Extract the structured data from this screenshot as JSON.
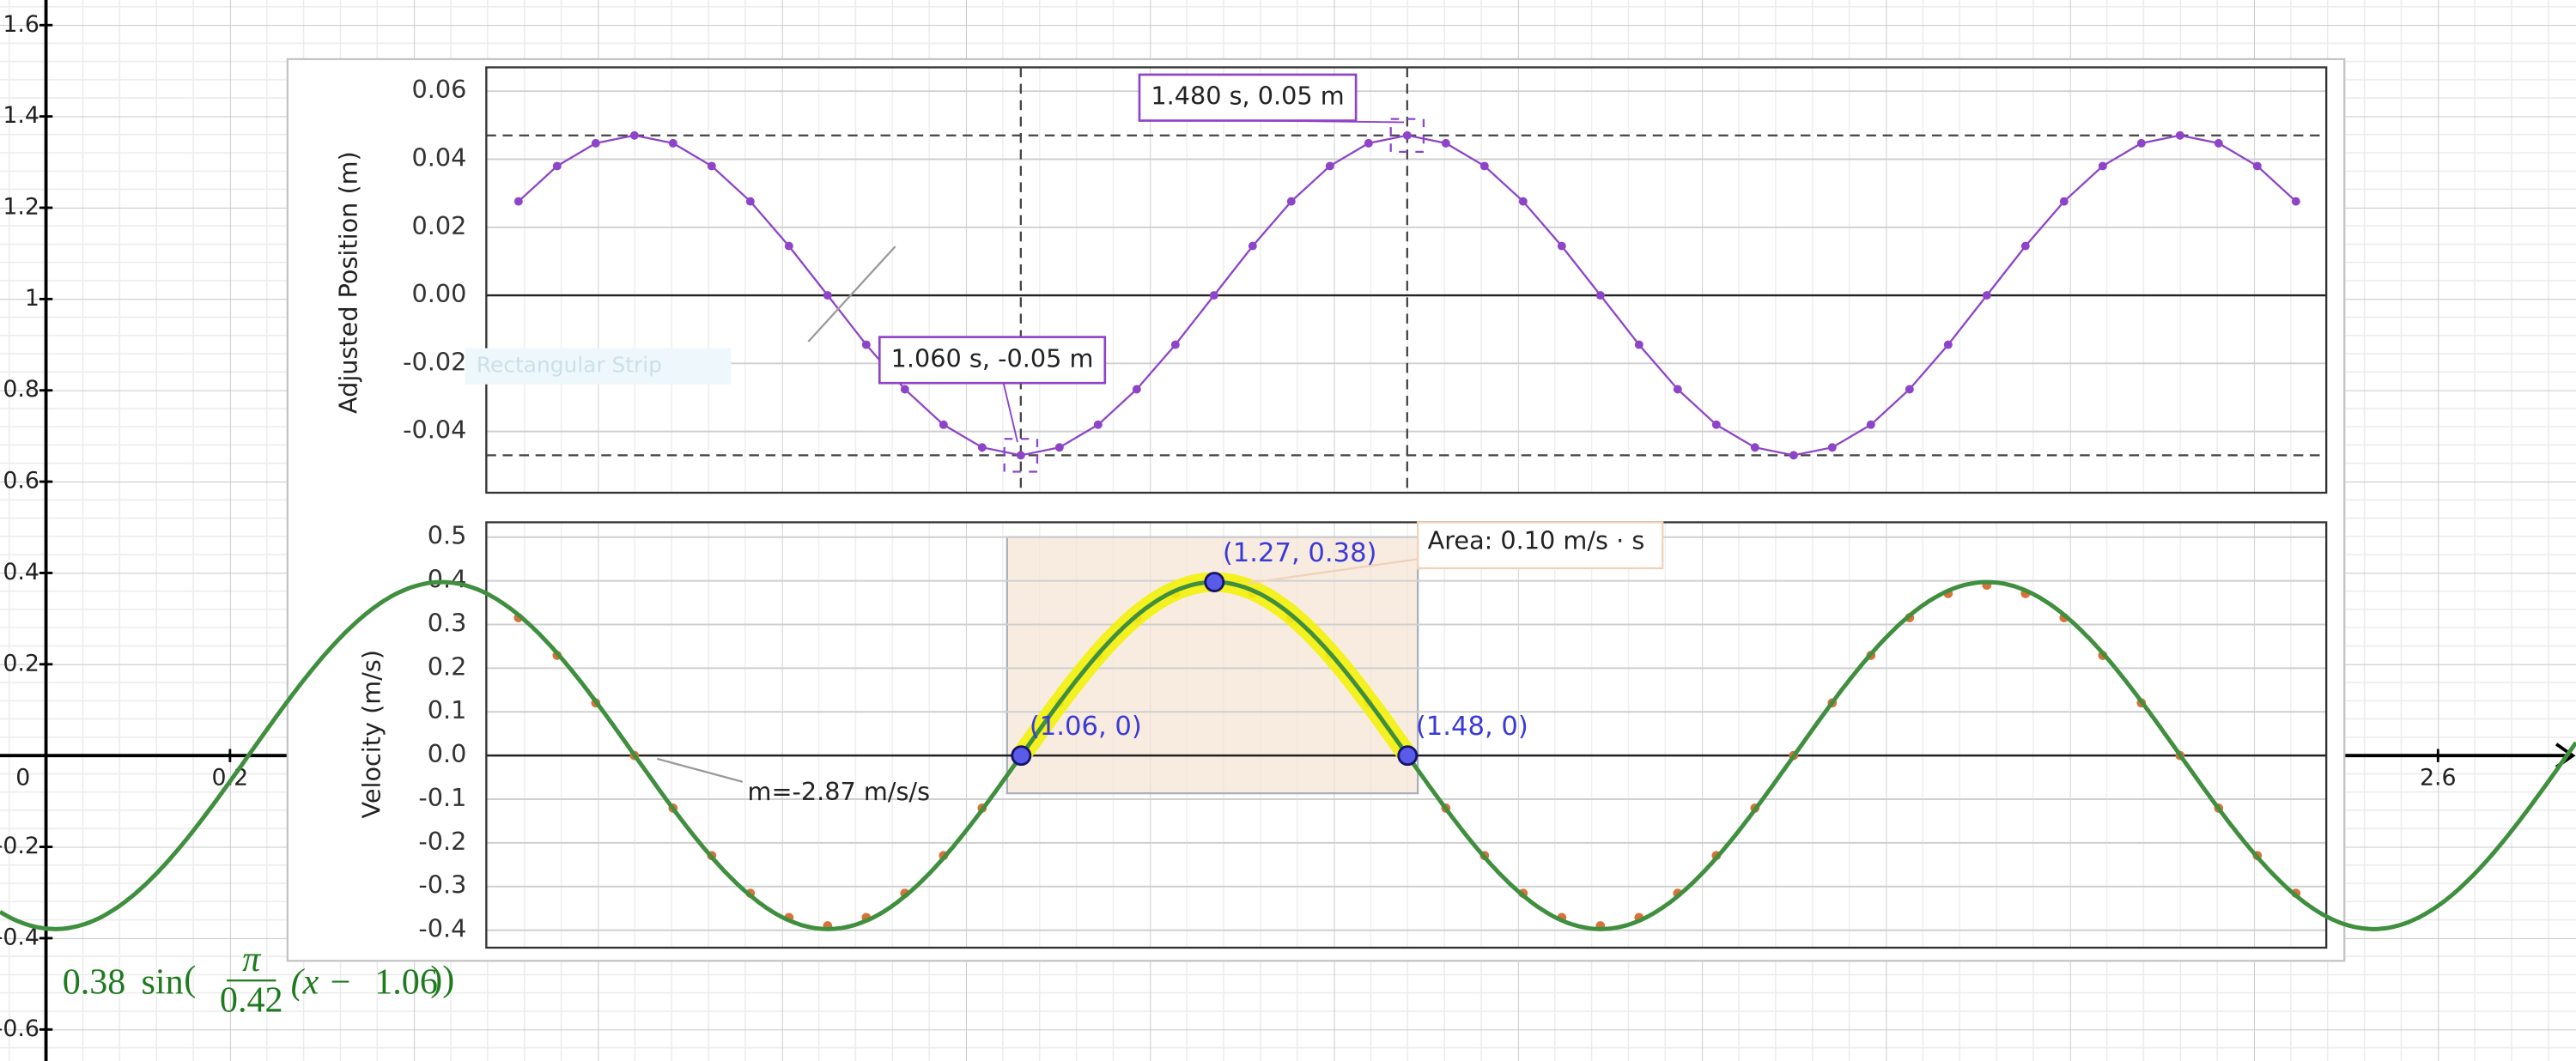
{
  "chart_data": [
    {
      "type": "function",
      "xlim": [
        -0.05,
        2.75
      ],
      "ylim": [
        -0.669,
        1.655
      ],
      "xticks": [
        0,
        0.2,
        2.6
      ],
      "yticks": [
        1.6,
        1.4,
        1.2,
        1,
        0.8,
        0.6,
        0.4,
        0.2,
        -0.2,
        -0.4,
        -0.6
      ],
      "grid": true,
      "color": "#3f8f3f",
      "formula": {
        "amplitude": 0.38,
        "function": "sin",
        "open": "(",
        "numerator": "π",
        "divisor": 0.42,
        "variable_part": "(x −",
        "shift": 1.06,
        "close": "))"
      },
      "points": [
        {
          "x": 1.06,
          "y": 0,
          "label": "(1.06, 0)"
        },
        {
          "x": 1.27,
          "y": 0.38,
          "label": "(1.27, 0.38)"
        },
        {
          "x": 1.48,
          "y": 0,
          "label": "(1.48, 0)"
        }
      ],
      "area_label": "Area: 0.10 m/s · s"
    },
    {
      "type": "line",
      "y_label": "Adjusted Position (m)",
      "xlim": [
        0.479,
        2.479
      ],
      "ylim": [
        -0.058,
        0.067
      ],
      "yticks": [
        0.06,
        0.04,
        0.02,
        {
          "value": 0,
          "label": "0.00"
        },
        -0.02,
        -0.04
      ],
      "color": "#8e44c9",
      "x": [
        0.514,
        0.556,
        0.598,
        0.64,
        0.682,
        0.724,
        0.766,
        0.808,
        0.85,
        0.892,
        0.934,
        0.976,
        1.018,
        1.06,
        1.102,
        1.144,
        1.186,
        1.228,
        1.27,
        1.312,
        1.354,
        1.396,
        1.438,
        1.48,
        1.522,
        1.564,
        1.606,
        1.648,
        1.69,
        1.732,
        1.774,
        1.816,
        1.858,
        1.9,
        1.942,
        1.984,
        2.026,
        2.068,
        2.11,
        2.152,
        2.194,
        2.236,
        2.278,
        2.32,
        2.362,
        2.404,
        2.446
      ],
      "values": [
        0.0276,
        0.038,
        0.0447,
        0.047,
        0.0447,
        0.038,
        0.0276,
        0.0145,
        0,
        -0.0145,
        -0.0276,
        -0.038,
        -0.0447,
        -0.047,
        -0.0447,
        -0.038,
        -0.0276,
        -0.0145,
        0,
        0.0145,
        0.0276,
        0.038,
        0.0447,
        0.047,
        0.0447,
        0.038,
        0.0276,
        0.0145,
        0,
        -0.0145,
        -0.0276,
        -0.038,
        -0.0447,
        -0.047,
        -0.0447,
        -0.038,
        -0.0276,
        -0.0145,
        0,
        0.0145,
        0.0276,
        0.038,
        0.0447,
        0.047,
        0.0447,
        0.038,
        0.0276
      ],
      "annotations": [
        {
          "x": 1.48,
          "y": 0.047,
          "label": "1.480 s, 0.05 m"
        },
        {
          "x": 1.06,
          "y": -0.047,
          "label": "1.060 s, -0.05 m"
        }
      ],
      "watermark": "Rectangular Strip"
    },
    {
      "type": "scatter",
      "y_label": "Velocity (m/s)",
      "xlim": [
        0.479,
        2.479
      ],
      "ylim": [
        -0.44,
        0.534
      ],
      "yticks": [
        0.5,
        0.4,
        0.3,
        0.2,
        0.1,
        {
          "value": 0,
          "label": "0.0"
        },
        -0.1,
        -0.2,
        -0.3,
        -0.4
      ],
      "color": "#d9713a",
      "x": [
        0.514,
        0.556,
        0.598,
        0.64,
        0.682,
        0.724,
        0.766,
        0.808,
        0.85,
        0.892,
        0.934,
        0.976,
        1.018,
        1.06,
        1.102,
        1.144,
        1.186,
        1.228,
        1.27,
        1.312,
        1.354,
        1.396,
        1.438,
        1.48,
        1.522,
        1.564,
        1.606,
        1.648,
        1.69,
        1.732,
        1.774,
        1.816,
        1.858,
        1.9,
        1.942,
        1.984,
        2.026,
        2.068,
        2.11,
        2.152,
        2.194,
        2.236,
        2.278,
        2.32,
        2.362,
        2.404,
        2.446
      ],
      "values": [
        0.3155,
        0.2292,
        0.1205,
        0,
        -0.1205,
        -0.2292,
        -0.3155,
        -0.3709,
        -0.39,
        -0.3709,
        -0.3155,
        -0.2292,
        -0.1205,
        0,
        0.1205,
        0.2292,
        0.3155,
        0.3709,
        0.39,
        0.3709,
        0.3155,
        0.2292,
        0.1205,
        0,
        -0.1205,
        -0.2292,
        -0.3155,
        -0.3709,
        -0.39,
        -0.3709,
        -0.3155,
        -0.2292,
        -0.1205,
        0,
        0.1205,
        0.2292,
        0.3155,
        0.3709,
        0.39,
        0.3709,
        0.3155,
        0.2292,
        0.1205,
        0,
        -0.1205,
        -0.2292,
        -0.3155
      ],
      "slope_label": "m=-2.87 m/s/s"
    }
  ]
}
